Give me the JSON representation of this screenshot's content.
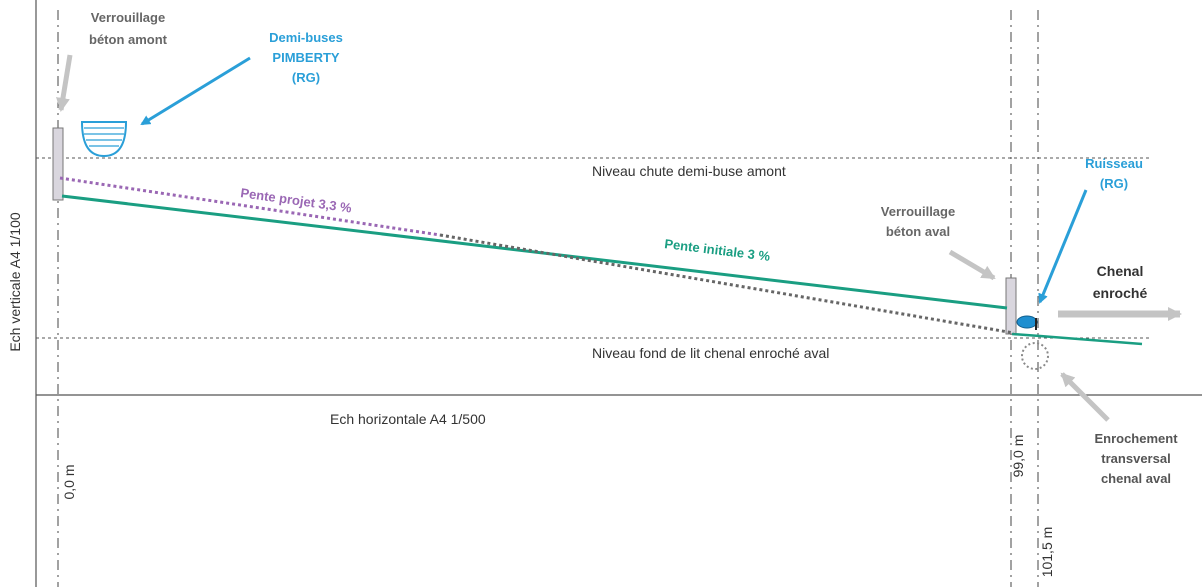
{
  "colors": {
    "teal": "#1a9e82",
    "purple": "#9a67b4",
    "blue": "#2a9fd8",
    "grey": "#bdbdbd",
    "dark_grey": "#4f4f4f",
    "text": "#333333"
  },
  "labels": {
    "verrouillage_amont": [
      "Verrouillage",
      "béton amont"
    ],
    "demi_buses": [
      "Demi-buses",
      "PIMBERTY",
      "(RG)"
    ],
    "niveau_chute": "Niveau chute demi-buse amont",
    "pente_projet": "Pente projet 3,3 %",
    "pente_initiale": "Pente initiale 3 %",
    "verrouillage_aval": [
      "Verrouillage",
      "béton aval"
    ],
    "ruisseau": [
      "Ruisseau",
      "(RG)"
    ],
    "chenal_enroche": [
      "Chenal",
      "enroché"
    ],
    "niveau_fond": "Niveau fond de lit chenal enroché aval",
    "ech_horizontale": "Ech horizontale A4 1/500",
    "ech_verticale": "Ech verticale A4 1/100",
    "enrochement": [
      "Enrochement",
      "transversal",
      "chenal aval"
    ],
    "dist_start": "0,0 m",
    "dist_99": "99,0 m",
    "dist_101": "101,5 m"
  }
}
